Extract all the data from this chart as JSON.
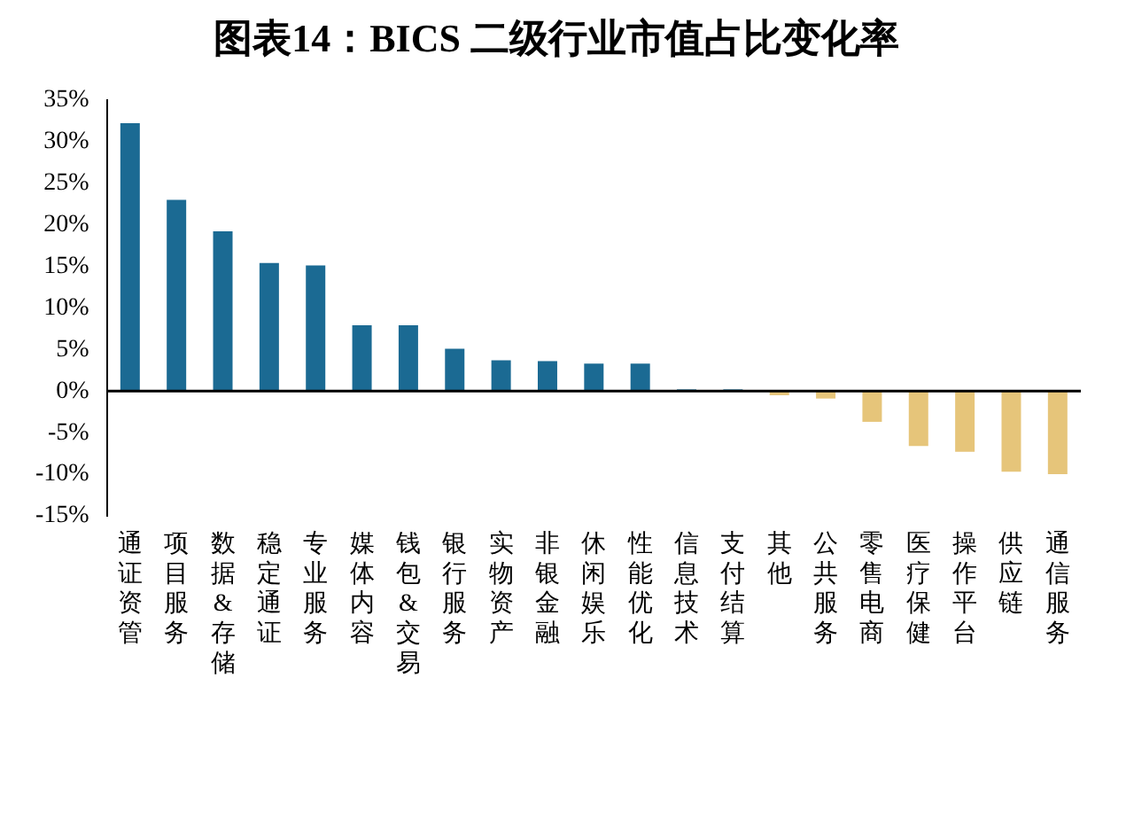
{
  "chart_data": {
    "type": "bar",
    "title": "图表14：BICS 二级行业市值占比变化率",
    "categories": [
      "通证资管",
      "项目服务",
      "数据&存储",
      "稳定通证",
      "专业服务",
      "媒体内容",
      "钱包&交易",
      "银行服务",
      "实物资产",
      "非银金融",
      "休闲娱乐",
      "性能优化",
      "信息技术",
      "支付结算",
      "其他",
      "公共服务",
      "零售电商",
      "医疗保健",
      "操作平台",
      "供应链",
      "通信服务"
    ],
    "values": [
      32.2,
      23.0,
      19.2,
      15.4,
      15.1,
      7.9,
      7.9,
      5.1,
      3.7,
      3.6,
      3.3,
      3.3,
      0.2,
      0.2,
      -0.5,
      -0.9,
      -3.7,
      -6.6,
      -7.3,
      -9.7,
      -10.0
    ],
    "colors": [
      "#1b6a93",
      "#1b6a93",
      "#1b6a93",
      "#1b6a93",
      "#1b6a93",
      "#1b6a93",
      "#1b6a93",
      "#1b6a93",
      "#1b6a93",
      "#1b6a93",
      "#1b6a93",
      "#1b6a93",
      "#1b6a93",
      "#1b6a93",
      "#e6c57a",
      "#e6c57a",
      "#e6c57a",
      "#e6c57a",
      "#e6c57a",
      "#e6c57a",
      "#e6c57a"
    ],
    "ylim": [
      -15,
      35
    ],
    "yticks": [
      {
        "value": -15,
        "label": "-15%"
      },
      {
        "value": -10,
        "label": "-10%"
      },
      {
        "value": -5,
        "label": "-5%"
      },
      {
        "value": 0,
        "label": "0%"
      },
      {
        "value": 5,
        "label": "5%"
      },
      {
        "value": 10,
        "label": "10%"
      },
      {
        "value": 15,
        "label": "15%"
      },
      {
        "value": 20,
        "label": "20%"
      },
      {
        "value": 25,
        "label": "25%"
      },
      {
        "value": 30,
        "label": "30%"
      },
      {
        "value": 35,
        "label": "35%"
      }
    ],
    "ref_lines": [
      {
        "axis": "y",
        "value": 0,
        "color": "#000000"
      }
    ],
    "grid": false,
    "legend": false
  }
}
